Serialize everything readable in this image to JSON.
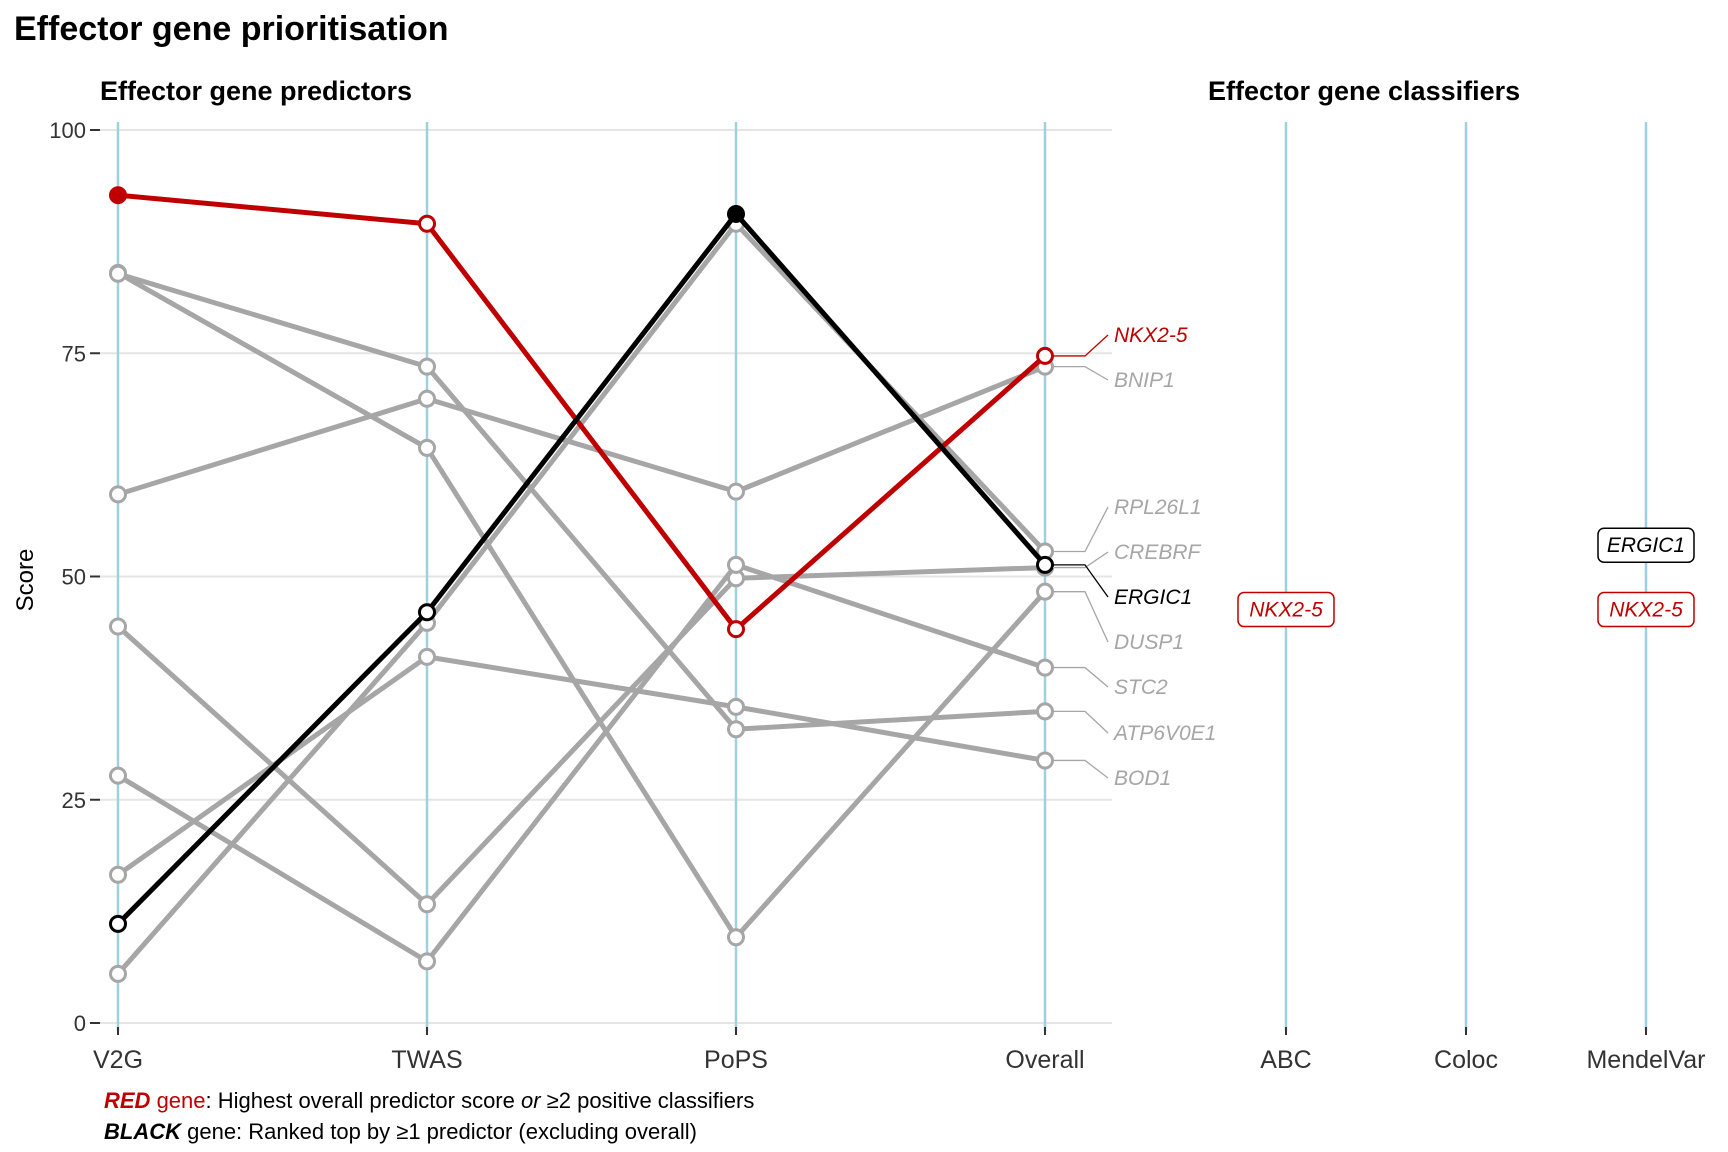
{
  "title": "Effector gene prioritisation",
  "panels": {
    "left_title": "Effector gene predictors",
    "right_title": "Effector gene classifiers"
  },
  "colors": {
    "red": "#c00000",
    "black": "#000000",
    "grey": "#a6a6a6",
    "axis_line": "#9fd0e0",
    "grid": "#e5e5e5"
  },
  "chart_data": {
    "type": "line",
    "ylabel": "Score",
    "ylim": [
      0,
      100
    ],
    "yticks": [
      "0",
      "25",
      "50",
      "75",
      "100"
    ],
    "grid": true,
    "categories": [
      "V2G",
      "TWAS",
      "PoPS",
      "Overall"
    ],
    "classifier_categories": [
      "ABC",
      "Coloc",
      "MendelVar"
    ],
    "series": [
      {
        "name": "NKX2-5",
        "highlight": "red",
        "values": [
          92.7,
          89.5,
          44.1,
          74.7
        ]
      },
      {
        "name": "ERGIC1",
        "highlight": "black",
        "values": [
          11.1,
          46.0,
          90.6,
          51.3
        ]
      },
      {
        "name": "BNIP1",
        "highlight": "grey",
        "values": [
          59.2,
          69.9,
          59.5,
          73.5
        ]
      },
      {
        "name": "RPL26L1",
        "highlight": "grey",
        "values": [
          5.5,
          44.8,
          89.5,
          52.8
        ]
      },
      {
        "name": "CREBRF",
        "highlight": "grey",
        "values": [
          44.4,
          13.3,
          49.8,
          51.0
        ]
      },
      {
        "name": "DUSP1",
        "highlight": "grey",
        "values": [
          84.0,
          64.4,
          9.6,
          48.3
        ]
      },
      {
        "name": "STC2",
        "highlight": "grey",
        "values": [
          27.7,
          6.9,
          51.3,
          39.8
        ]
      },
      {
        "name": "ATP6V0E1",
        "highlight": "grey",
        "values": [
          83.9,
          73.5,
          32.9,
          34.9
        ]
      },
      {
        "name": "BOD1",
        "highlight": "grey",
        "values": [
          16.6,
          41.0,
          35.4,
          29.4
        ]
      }
    ],
    "label_order": [
      "NKX2-5",
      "BNIP1",
      "RPL26L1",
      "CREBRF",
      "ERGIC1",
      "DUSP1",
      "STC2",
      "ATP6V0E1",
      "BOD1"
    ],
    "classifiers": [
      {
        "classifier": "ABC",
        "gene": "NKX2-5",
        "highlight": "red",
        "value": 46.3
      },
      {
        "classifier": "MendelVar",
        "gene": "ERGIC1",
        "highlight": "black",
        "value": 53.5
      },
      {
        "classifier": "MendelVar",
        "gene": "NKX2-5",
        "highlight": "red",
        "value": 46.3
      }
    ]
  },
  "footnotes": {
    "line1_keyword": "RED",
    "line1_gene": " gene",
    "line1_text_a": ": Highest overall predictor score ",
    "line1_or": "or",
    "line1_text_b": " ≥2 positive classifiers",
    "line2_keyword": "BLACK",
    "line2_text": " gene: Ranked top by ≥1 predictor (excluding overall)"
  }
}
